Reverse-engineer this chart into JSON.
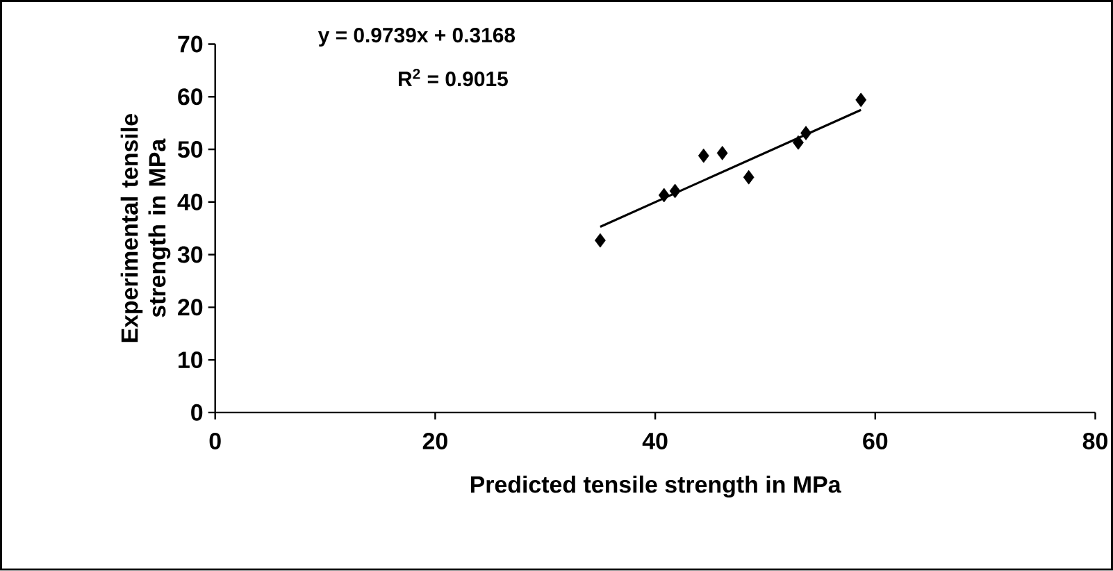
{
  "chart_data": {
    "type": "scatter",
    "xlabel": "Predicted tensile strength in MPa",
    "ylabel": "Experimental tensile strength in MPa",
    "annotations": [
      "y = 0.9739x + 0.3168",
      "R$^{2}$ = 0.9015"
    ],
    "xlim": [
      0,
      80
    ],
    "xticks": [
      0,
      20,
      40,
      60,
      80
    ],
    "ylim": [
      0,
      70
    ],
    "yticks": [
      0,
      10,
      20,
      30,
      40,
      50,
      60,
      70
    ],
    "marker": "diamond",
    "series": [
      {
        "color": "#000000",
        "x": [
          35.0,
          40.8,
          41.8,
          44.4,
          46.1,
          48.5,
          53.0,
          53.7,
          58.7
        ],
        "values": [
          32.7,
          41.3,
          42.1,
          48.8,
          49.3,
          44.7,
          51.3,
          53.1,
          59.4
        ]
      },
      {
        "type": "line",
        "color": "#000000",
        "marker": "none",
        "line_style": "solid",
        "x": [
          35.0,
          58.7
        ],
        "values": [
          35.3,
          57.5
        ]
      }
    ]
  }
}
